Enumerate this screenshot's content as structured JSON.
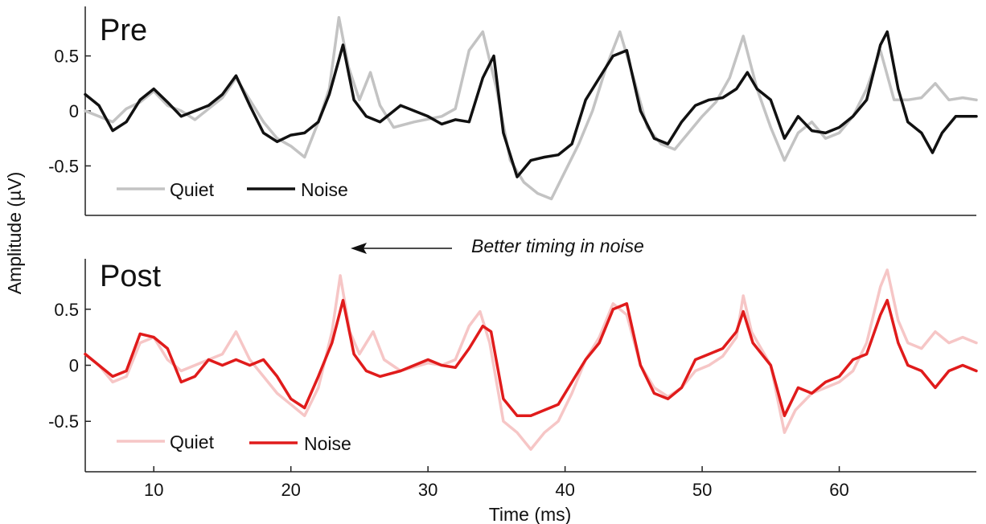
{
  "chart_data": [
    {
      "type": "line",
      "panel": "pre",
      "title": "Pre",
      "xlabel": "",
      "ylabel": "Amplitude (µV)",
      "xlim": [
        5,
        70
      ],
      "ylim": [
        -0.95,
        0.95
      ],
      "yticks": [
        0.5,
        0,
        -0.5
      ],
      "ytick_labels": [
        "0.5",
        "0",
        "-0.5"
      ],
      "legend_position": "bottom-left",
      "series": [
        {
          "name": "Quiet",
          "color": "#c3c3c3",
          "points": [
            [
              5,
              0.0
            ],
            [
              6,
              -0.05
            ],
            [
              7,
              -0.1
            ],
            [
              8,
              0.02
            ],
            [
              9,
              0.08
            ],
            [
              10,
              0.18
            ],
            [
              11,
              0.05
            ],
            [
              12,
              0.0
            ],
            [
              13,
              -0.08
            ],
            [
              14,
              0.02
            ],
            [
              15,
              0.12
            ],
            [
              16,
              0.3
            ],
            [
              17,
              0.1
            ],
            [
              18,
              -0.1
            ],
            [
              19,
              -0.25
            ],
            [
              20,
              -0.32
            ],
            [
              21,
              -0.42
            ],
            [
              22,
              -0.1
            ],
            [
              22.8,
              0.2
            ],
            [
              23.5,
              0.85
            ],
            [
              24.2,
              0.4
            ],
            [
              25,
              0.1
            ],
            [
              25.8,
              0.35
            ],
            [
              26.5,
              0.05
            ],
            [
              27.5,
              -0.15
            ],
            [
              29,
              -0.1
            ],
            [
              31,
              -0.05
            ],
            [
              32,
              0.02
            ],
            [
              33,
              0.55
            ],
            [
              34,
              0.72
            ],
            [
              35,
              0.2
            ],
            [
              36,
              -0.45
            ],
            [
              37,
              -0.65
            ],
            [
              38,
              -0.75
            ],
            [
              39,
              -0.8
            ],
            [
              40,
              -0.55
            ],
            [
              41,
              -0.3
            ],
            [
              42,
              0.0
            ],
            [
              43,
              0.4
            ],
            [
              44,
              0.72
            ],
            [
              45,
              0.3
            ],
            [
              46,
              -0.15
            ],
            [
              47,
              -0.3
            ],
            [
              48,
              -0.35
            ],
            [
              49,
              -0.2
            ],
            [
              50,
              -0.05
            ],
            [
              51,
              0.08
            ],
            [
              52,
              0.3
            ],
            [
              53,
              0.68
            ],
            [
              54,
              0.2
            ],
            [
              55,
              -0.15
            ],
            [
              56,
              -0.45
            ],
            [
              57,
              -0.2
            ],
            [
              58,
              -0.1
            ],
            [
              59,
              -0.25
            ],
            [
              60,
              -0.2
            ],
            [
              61,
              -0.05
            ],
            [
              62,
              0.2
            ],
            [
              63,
              0.55
            ],
            [
              64,
              0.1
            ],
            [
              65,
              0.1
            ],
            [
              66,
              0.12
            ],
            [
              67,
              0.25
            ],
            [
              68,
              0.1
            ],
            [
              69,
              0.12
            ],
            [
              70,
              0.1
            ]
          ]
        },
        {
          "name": "Noise",
          "color": "#111111",
          "points": [
            [
              5,
              0.15
            ],
            [
              6,
              0.05
            ],
            [
              7,
              -0.18
            ],
            [
              8,
              -0.1
            ],
            [
              9,
              0.1
            ],
            [
              10,
              0.2
            ],
            [
              11,
              0.08
            ],
            [
              12,
              -0.05
            ],
            [
              13,
              0.0
            ],
            [
              14,
              0.05
            ],
            [
              15,
              0.15
            ],
            [
              16,
              0.32
            ],
            [
              17,
              0.05
            ],
            [
              18,
              -0.2
            ],
            [
              19,
              -0.28
            ],
            [
              20,
              -0.22
            ],
            [
              21,
              -0.2
            ],
            [
              22,
              -0.1
            ],
            [
              22.8,
              0.15
            ],
            [
              23.8,
              0.6
            ],
            [
              24.6,
              0.1
            ],
            [
              25.5,
              -0.05
            ],
            [
              26.5,
              -0.1
            ],
            [
              28,
              0.05
            ],
            [
              30,
              -0.05
            ],
            [
              31,
              -0.12
            ],
            [
              32,
              -0.08
            ],
            [
              33,
              -0.1
            ],
            [
              34,
              0.3
            ],
            [
              34.8,
              0.5
            ],
            [
              35.5,
              -0.2
            ],
            [
              36.5,
              -0.6
            ],
            [
              37.5,
              -0.45
            ],
            [
              38.5,
              -0.42
            ],
            [
              39.5,
              -0.4
            ],
            [
              40.5,
              -0.3
            ],
            [
              41.5,
              0.1
            ],
            [
              42.5,
              0.3
            ],
            [
              43.5,
              0.5
            ],
            [
              44.5,
              0.55
            ],
            [
              45.5,
              0.0
            ],
            [
              46.5,
              -0.25
            ],
            [
              47.5,
              -0.3
            ],
            [
              48.5,
              -0.1
            ],
            [
              49.5,
              0.05
            ],
            [
              50.5,
              0.1
            ],
            [
              51.5,
              0.12
            ],
            [
              52.5,
              0.2
            ],
            [
              53.3,
              0.35
            ],
            [
              54,
              0.2
            ],
            [
              55,
              0.1
            ],
            [
              56,
              -0.25
            ],
            [
              57,
              -0.05
            ],
            [
              58,
              -0.18
            ],
            [
              59,
              -0.2
            ],
            [
              60,
              -0.15
            ],
            [
              61,
              -0.05
            ],
            [
              62,
              0.1
            ],
            [
              63,
              0.6
            ],
            [
              63.5,
              0.72
            ],
            [
              64.3,
              0.2
            ],
            [
              65,
              -0.1
            ],
            [
              66,
              -0.2
            ],
            [
              66.8,
              -0.38
            ],
            [
              67.5,
              -0.2
            ],
            [
              68.5,
              -0.05
            ],
            [
              70,
              -0.05
            ]
          ]
        }
      ]
    },
    {
      "type": "line",
      "panel": "post",
      "title": "Post",
      "xlabel": "Time (ms)",
      "ylabel": "Amplitude (µV)",
      "xlim": [
        5,
        70
      ],
      "ylim": [
        -0.95,
        0.95
      ],
      "xticks": [
        10,
        20,
        30,
        40,
        50,
        60
      ],
      "xtick_labels": [
        "10",
        "20",
        "30",
        "40",
        "50",
        "60"
      ],
      "yticks": [
        0.5,
        0,
        -0.5
      ],
      "ytick_labels": [
        "0.5",
        "0",
        "-0.5"
      ],
      "legend_position": "bottom-left",
      "series": [
        {
          "name": "Quiet",
          "color": "#f6c6c6",
          "points": [
            [
              5,
              0.1
            ],
            [
              6,
              0.0
            ],
            [
              7,
              -0.15
            ],
            [
              8,
              -0.1
            ],
            [
              9,
              0.2
            ],
            [
              10,
              0.25
            ],
            [
              11,
              0.05
            ],
            [
              12,
              -0.05
            ],
            [
              13,
              0.0
            ],
            [
              14,
              0.05
            ],
            [
              15,
              0.1
            ],
            [
              16,
              0.3
            ],
            [
              17,
              0.05
            ],
            [
              18,
              -0.1
            ],
            [
              19,
              -0.25
            ],
            [
              20,
              -0.35
            ],
            [
              21,
              -0.45
            ],
            [
              22,
              -0.2
            ],
            [
              23,
              0.3
            ],
            [
              23.6,
              0.8
            ],
            [
              24.3,
              0.3
            ],
            [
              25,
              0.1
            ],
            [
              26,
              0.3
            ],
            [
              26.8,
              0.05
            ],
            [
              28,
              -0.05
            ],
            [
              30,
              0.02
            ],
            [
              31,
              0.0
            ],
            [
              32,
              0.05
            ],
            [
              33,
              0.35
            ],
            [
              33.8,
              0.48
            ],
            [
              34.5,
              0.2
            ],
            [
              35.5,
              -0.5
            ],
            [
              36.5,
              -0.6
            ],
            [
              37.5,
              -0.75
            ],
            [
              38.5,
              -0.6
            ],
            [
              39.5,
              -0.5
            ],
            [
              40.5,
              -0.25
            ],
            [
              41.5,
              0.05
            ],
            [
              42.5,
              0.25
            ],
            [
              43.5,
              0.55
            ],
            [
              44.5,
              0.45
            ],
            [
              45.5,
              0.0
            ],
            [
              46.5,
              -0.2
            ],
            [
              47.5,
              -0.28
            ],
            [
              48.5,
              -0.2
            ],
            [
              49.5,
              -0.05
            ],
            [
              50.5,
              0.0
            ],
            [
              51.5,
              0.08
            ],
            [
              52.5,
              0.25
            ],
            [
              53,
              0.62
            ],
            [
              53.6,
              0.3
            ],
            [
              55,
              0.0
            ],
            [
              56,
              -0.6
            ],
            [
              56.8,
              -0.4
            ],
            [
              58,
              -0.25
            ],
            [
              59,
              -0.2
            ],
            [
              60,
              -0.15
            ],
            [
              61,
              -0.05
            ],
            [
              62,
              0.2
            ],
            [
              63,
              0.7
            ],
            [
              63.5,
              0.85
            ],
            [
              64.3,
              0.4
            ],
            [
              65,
              0.2
            ],
            [
              66,
              0.15
            ],
            [
              67,
              0.3
            ],
            [
              68,
              0.2
            ],
            [
              69,
              0.25
            ],
            [
              70,
              0.2
            ]
          ]
        },
        {
          "name": "Noise",
          "color": "#e01b1b",
          "points": [
            [
              5,
              0.1
            ],
            [
              6,
              0.0
            ],
            [
              7,
              -0.1
            ],
            [
              8,
              -0.05
            ],
            [
              9,
              0.28
            ],
            [
              10,
              0.25
            ],
            [
              11,
              0.15
            ],
            [
              12,
              -0.15
            ],
            [
              13,
              -0.1
            ],
            [
              14,
              0.05
            ],
            [
              15,
              0.0
            ],
            [
              16,
              0.05
            ],
            [
              17,
              0.0
            ],
            [
              18,
              0.05
            ],
            [
              19,
              -0.1
            ],
            [
              20,
              -0.3
            ],
            [
              21,
              -0.38
            ],
            [
              22,
              -0.1
            ],
            [
              23,
              0.2
            ],
            [
              23.8,
              0.58
            ],
            [
              24.6,
              0.1
            ],
            [
              25.5,
              -0.05
            ],
            [
              26.5,
              -0.1
            ],
            [
              28,
              -0.05
            ],
            [
              30,
              0.05
            ],
            [
              31,
              0.0
            ],
            [
              32,
              -0.02
            ],
            [
              33,
              0.15
            ],
            [
              34,
              0.35
            ],
            [
              34.6,
              0.3
            ],
            [
              35.5,
              -0.3
            ],
            [
              36.5,
              -0.45
            ],
            [
              37.5,
              -0.45
            ],
            [
              38.5,
              -0.4
            ],
            [
              39.5,
              -0.35
            ],
            [
              40.5,
              -0.15
            ],
            [
              41.5,
              0.05
            ],
            [
              42.5,
              0.2
            ],
            [
              43.5,
              0.5
            ],
            [
              44.5,
              0.55
            ],
            [
              45.5,
              0.0
            ],
            [
              46.5,
              -0.25
            ],
            [
              47.5,
              -0.3
            ],
            [
              48.5,
              -0.2
            ],
            [
              49.5,
              0.05
            ],
            [
              50.5,
              0.1
            ],
            [
              51.5,
              0.15
            ],
            [
              52.5,
              0.3
            ],
            [
              53,
              0.48
            ],
            [
              53.7,
              0.2
            ],
            [
              55,
              0.0
            ],
            [
              56,
              -0.45
            ],
            [
              57,
              -0.2
            ],
            [
              58,
              -0.25
            ],
            [
              59,
              -0.15
            ],
            [
              60,
              -0.1
            ],
            [
              61,
              0.05
            ],
            [
              62,
              0.1
            ],
            [
              63,
              0.45
            ],
            [
              63.5,
              0.58
            ],
            [
              64.3,
              0.2
            ],
            [
              65,
              0.0
            ],
            [
              66,
              -0.05
            ],
            [
              67,
              -0.2
            ],
            [
              68,
              -0.05
            ],
            [
              69,
              0.0
            ],
            [
              70,
              -0.05
            ]
          ]
        }
      ]
    }
  ],
  "annotation": {
    "text": "Better timing in noise",
    "arrow_direction": "left"
  }
}
